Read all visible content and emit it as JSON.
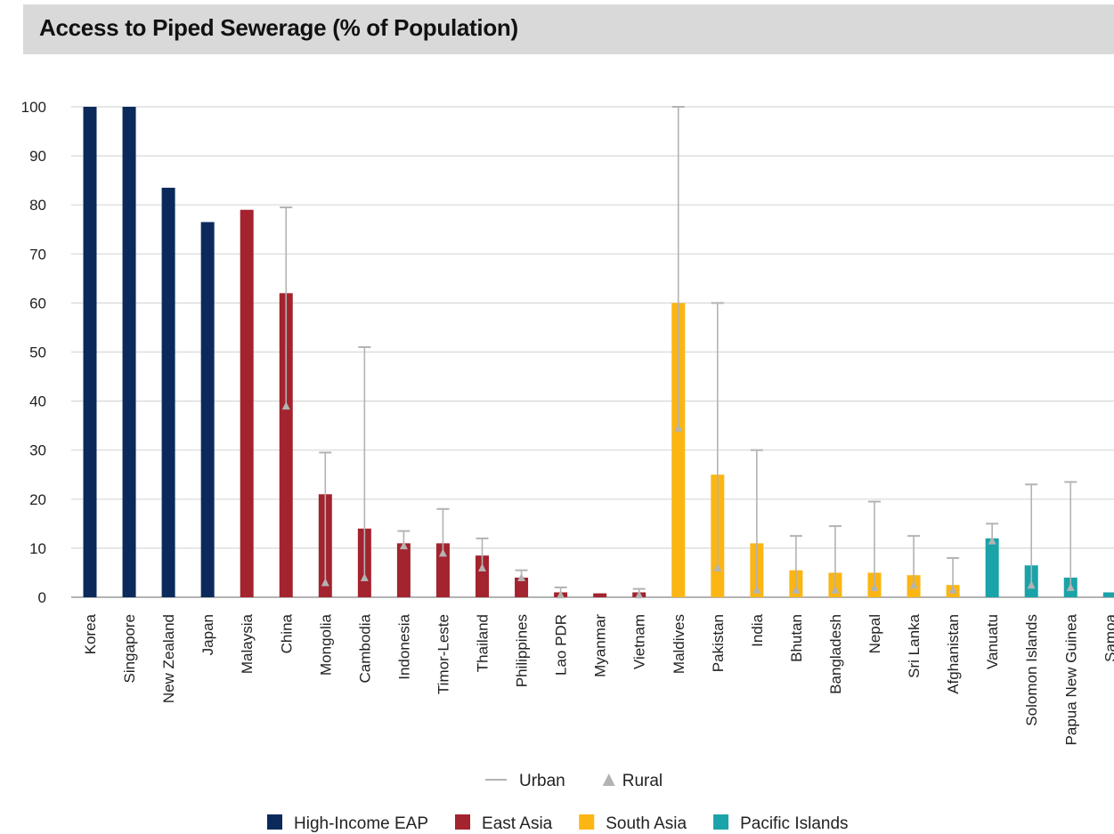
{
  "chart_data": {
    "type": "bar",
    "title": "Access to Piped Sewerage (% of Population)",
    "xlabel": "",
    "ylabel": "",
    "ylim": [
      0,
      100
    ],
    "yticks": [
      0,
      10,
      20,
      30,
      40,
      50,
      60,
      70,
      80,
      90,
      100
    ],
    "grid": true,
    "categories": [
      "Korea",
      "Singapore",
      "New Zealand",
      "Japan",
      "Malaysia",
      "China",
      "Mongolia",
      "Cambodia",
      "Indonesia",
      "Timor-Leste",
      "Thailand",
      "Philippines",
      "Lao PDR",
      "Myanmar",
      "Vietnam",
      "Maldives",
      "Pakistan",
      "India",
      "Bhutan",
      "Bangladesh",
      "Nepal",
      "Sri Lanka",
      "Afghanistan",
      "Vanuatu",
      "Solomon Islands",
      "Papua New Guinea",
      "Samoa"
    ],
    "groups": [
      "High-Income EAP",
      "High-Income EAP",
      "High-Income EAP",
      "High-Income EAP",
      "East Asia",
      "East Asia",
      "East Asia",
      "East Asia",
      "East Asia",
      "East Asia",
      "East Asia",
      "East Asia",
      "East Asia",
      "East Asia",
      "East Asia",
      "South Asia",
      "South Asia",
      "South Asia",
      "South Asia",
      "South Asia",
      "South Asia",
      "South Asia",
      "South Asia",
      "Pacific Islands",
      "Pacific Islands",
      "Pacific Islands",
      "Pacific Islands"
    ],
    "values": [
      100,
      100,
      83.5,
      76.5,
      79,
      62,
      21,
      14,
      11,
      11,
      8.5,
      4,
      1,
      0.8,
      1,
      60,
      25,
      11,
      5.5,
      5,
      5,
      4.5,
      2.5,
      12,
      6.5,
      4,
      1
    ],
    "urban": [
      null,
      null,
      null,
      null,
      null,
      79.5,
      29.5,
      51,
      13.5,
      18,
      12,
      5.5,
      2,
      null,
      1.7,
      100,
      60,
      30,
      12.5,
      14.5,
      19.5,
      12.5,
      8,
      15,
      23,
      23.5,
      null
    ],
    "rural": [
      null,
      null,
      null,
      null,
      null,
      39,
      3,
      4,
      10.5,
      9,
      6,
      4,
      0.5,
      null,
      0.5,
      34.5,
      6,
      1.5,
      1.5,
      1.5,
      2,
      2.5,
      1.5,
      11.5,
      2.5,
      2,
      null
    ],
    "group_colors": {
      "High-Income EAP": "#0b2a5b",
      "East Asia": "#a3232e",
      "South Asia": "#fbb614",
      "Pacific Islands": "#1aa3a8"
    },
    "range_color": "#b3b3b3",
    "legend_range": [
      {
        "label": "Urban",
        "symbol": "line"
      },
      {
        "label": "Rural",
        "symbol": "triangle"
      }
    ],
    "legend_groups": [
      "High-Income EAP",
      "East Asia",
      "South Asia",
      "Pacific Islands"
    ],
    "legend_placement": "bottom"
  }
}
